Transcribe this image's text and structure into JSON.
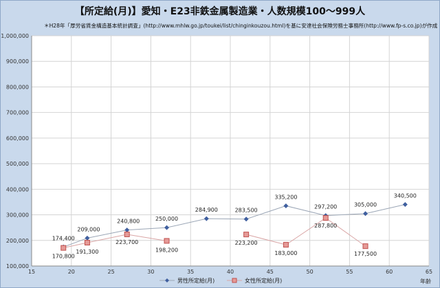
{
  "title": "【所定給(月)】愛知・E23非鉄金属製造業・人数規模100～999人",
  "source": "＊H28年「厚労省賃金構造基本統計調査」(http://www.mhlw.go.jp/toukei/list/chinginkouzou.html)を基に安達社会保険労務士事務所(http://www.fp-s.co.jp)が作成",
  "colors": {
    "male": "#3f5f9f",
    "female": "#c0504d",
    "male_line": "#9aa5b5",
    "female_line": "#d9a5a5"
  },
  "chart_data": {
    "type": "line",
    "xlabel": "年齢",
    "ylabel": "",
    "xlim": [
      15,
      65
    ],
    "ylim": [
      100000,
      1000000
    ],
    "xticks": [
      "15",
      "20",
      "25",
      "30",
      "35",
      "40",
      "45",
      "50",
      "55",
      "60",
      "65"
    ],
    "yticks": [
      "100,000",
      "200,000",
      "300,000",
      "400,000",
      "500,000",
      "600,000",
      "700,000",
      "800,000",
      "900,000",
      "1,000,000"
    ],
    "grid": true,
    "legend": "bottom",
    "series": [
      {
        "name": "男性所定給(月)",
        "color_key": "male",
        "x": [
          19,
          22,
          27,
          32,
          37,
          42,
          47,
          52,
          57,
          62
        ],
        "values": [
          174400,
          209000,
          240800,
          250000,
          284900,
          283500,
          335200,
          297200,
          305000,
          340500
        ],
        "labels": [
          "174,400",
          "209,000",
          "240,800",
          "250,000",
          "284,900",
          "283,500",
          "335,200",
          "297,200",
          "305,000",
          "340,500"
        ]
      },
      {
        "name": "女性所定給(月)",
        "color_key": "female",
        "x": [
          19,
          22,
          27,
          32,
          42,
          47,
          52,
          57
        ],
        "values": [
          170800,
          191300,
          223700,
          198200,
          223200,
          183000,
          287800,
          177500
        ],
        "labels": [
          "170,800",
          "191,300",
          "223,700",
          "198,200",
          "223,200",
          "183,000",
          "287,800",
          "177,500"
        ]
      }
    ]
  }
}
